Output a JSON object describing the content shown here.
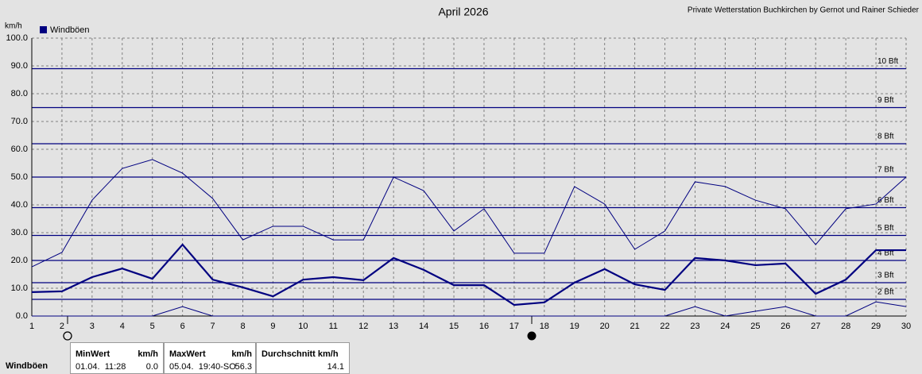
{
  "chart_data": {
    "type": "line",
    "title": "April 2026",
    "credit": "Private Wetterstation Buchkirchen by Gernot und Rainer Schieder",
    "y_label": "km/h",
    "x": [
      1,
      2,
      3,
      4,
      5,
      6,
      7,
      8,
      9,
      10,
      11,
      12,
      13,
      14,
      15,
      16,
      17,
      18,
      19,
      20,
      21,
      22,
      23,
      24,
      25,
      26,
      27,
      28,
      29,
      30
    ],
    "xlim": [
      1,
      30
    ],
    "xticks": [
      1,
      2,
      3,
      4,
      5,
      6,
      7,
      8,
      9,
      10,
      11,
      12,
      13,
      14,
      15,
      16,
      17,
      18,
      19,
      20,
      21,
      22,
      23,
      24,
      25,
      26,
      27,
      28,
      29,
      30
    ],
    "ylim": [
      0,
      100
    ],
    "yticks": [
      {
        "value": 0,
        "label": "0.0"
      },
      {
        "value": 10,
        "label": "10.0"
      },
      {
        "value": 20,
        "label": "20.0"
      },
      {
        "value": 30,
        "label": "30.0"
      },
      {
        "value": 40,
        "label": "40.0"
      },
      {
        "value": 50,
        "label": "50.0"
      },
      {
        "value": 60,
        "label": "60.0"
      },
      {
        "value": 70,
        "label": "70.0"
      },
      {
        "value": 80,
        "label": "80.0"
      },
      {
        "value": 90,
        "label": "90.0"
      },
      {
        "value": 100,
        "label": "100.0"
      }
    ],
    "grid": true,
    "legend": "top-left",
    "series": [
      {
        "name": "Windböen",
        "color": "#000080",
        "values": [
          8.6,
          8.9,
          14.0,
          17.1,
          13.4,
          25.7,
          13.1,
          10.3,
          7.1,
          13.1,
          14.0,
          12.9,
          20.9,
          16.6,
          11.1,
          11.1,
          4.0,
          4.9,
          12.0,
          16.9,
          11.4,
          9.4,
          20.9,
          20.0,
          18.3,
          18.9,
          8.0,
          13.1,
          23.7,
          23.7
        ],
        "max": [
          17.7,
          22.9,
          41.7,
          53.1,
          56.3,
          51.4,
          42.3,
          27.4,
          32.3,
          32.3,
          27.4,
          27.4,
          50.0,
          45.1,
          30.6,
          38.6,
          22.6,
          22.6,
          46.6,
          40.3,
          24.0,
          30.6,
          48.3,
          46.6,
          41.7,
          38.6,
          25.7,
          38.6,
          40.3,
          50.0
        ],
        "min": [
          0,
          0,
          0,
          0,
          0,
          3.4,
          0,
          0,
          0,
          0,
          0,
          0,
          0,
          0,
          0,
          0,
          0,
          0,
          0,
          0,
          0,
          0,
          3.4,
          0,
          1.7,
          3.4,
          0,
          0,
          5.1,
          3.4
        ]
      }
    ],
    "reference_lines": [
      {
        "value": 6,
        "label": "2 Bft"
      },
      {
        "value": 12,
        "label": "3 Bft"
      },
      {
        "value": 20,
        "label": "4 Bft"
      },
      {
        "value": 29,
        "label": "5 Bft"
      },
      {
        "value": 39,
        "label": "6 Bft"
      },
      {
        "value": 50,
        "label": "7 Bft"
      },
      {
        "value": 62,
        "label": "8 Bft"
      },
      {
        "value": 75,
        "label": "9 Bft"
      },
      {
        "value": 89,
        "label": "10 Bft"
      }
    ]
  },
  "stats_table": {
    "row_label": "Windböen",
    "min": {
      "header": "MinWert",
      "unit": "km/h",
      "time": "01.04.  11:28",
      "value": "0.0"
    },
    "max": {
      "header": "MaxWert",
      "unit": "km/h",
      "time": "05.04.  19:40-SO",
      "value": "56.3"
    },
    "avg": {
      "header": "Durchschnitt km/h",
      "value": "14.1"
    }
  }
}
